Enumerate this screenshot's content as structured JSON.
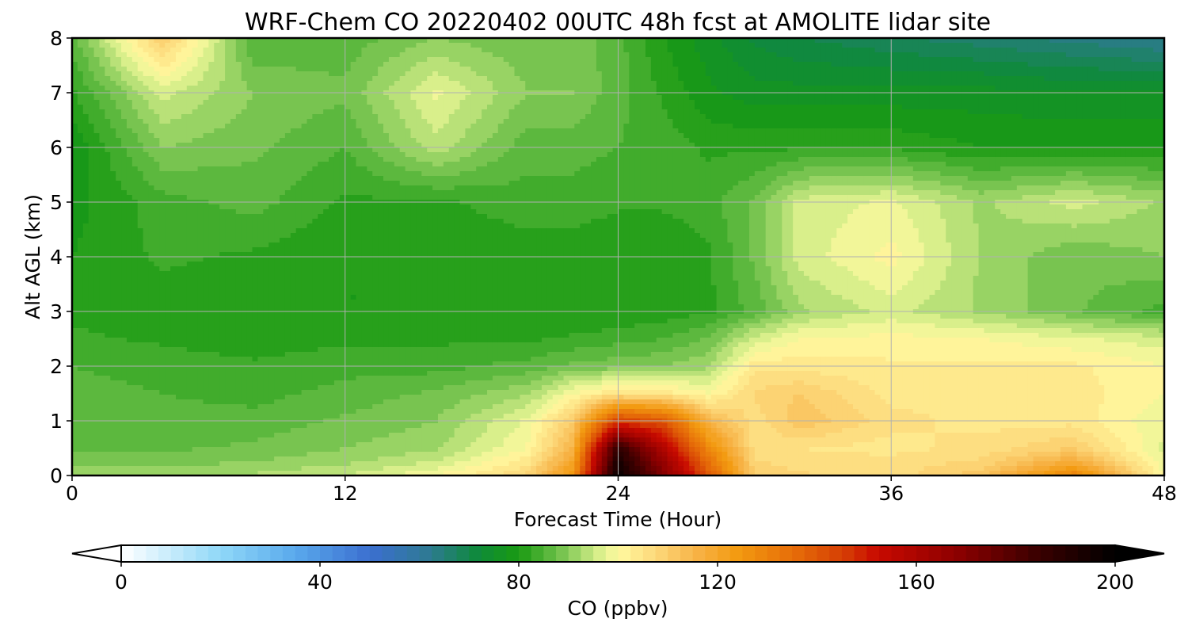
{
  "chart_data": {
    "type": "heatmap",
    "title": "WRF-Chem CO  20220402 00UTC 48h fcst at AMOLITE lidar site",
    "xlabel": "Forecast Time (Hour)",
    "ylabel": "Alt AGL (km)",
    "xlim": [
      0,
      48
    ],
    "ylim": [
      0,
      8
    ],
    "x_ticks": [
      "0",
      "12",
      "24",
      "36",
      "48"
    ],
    "y_ticks": [
      "0",
      "1",
      "2",
      "3",
      "4",
      "5",
      "6",
      "7",
      "8"
    ],
    "grid": true,
    "x_hours": [
      0,
      4,
      8,
      12,
      16,
      20,
      22,
      24,
      26,
      28,
      30,
      32,
      36,
      40,
      44,
      48
    ],
    "z_km": [
      0,
      0.25,
      0.5,
      1,
      1.5,
      2,
      2.5,
      3,
      4,
      5,
      6,
      7,
      8
    ],
    "co_ppbv": [
      [
        92,
        92,
        93,
        95,
        100,
        108,
        125,
        198,
        170,
        140,
        110,
        108,
        106,
        112,
        130,
        100
      ],
      [
        89,
        89,
        90,
        92,
        95,
        104,
        120,
        194,
        165,
        134,
        108,
        106,
        106,
        108,
        118,
        98
      ],
      [
        87,
        87,
        88,
        90,
        92,
        100,
        116,
        188,
        158,
        128,
        106,
        105,
        104,
        106,
        110,
        97
      ],
      [
        87,
        86,
        86,
        88,
        90,
        98,
        110,
        145,
        140,
        115,
        106,
        112,
        106,
        104,
        104,
        98
      ],
      [
        86,
        85,
        84,
        86,
        88,
        92,
        100,
        105,
        104,
        100,
        108,
        110,
        104,
        104,
        104,
        100
      ],
      [
        85,
        84,
        83,
        84,
        84,
        86,
        88,
        89,
        90,
        92,
        104,
        104,
        103,
        103,
        103,
        100
      ],
      [
        83,
        82,
        81,
        82,
        82,
        82,
        83,
        84,
        85,
        88,
        96,
        100,
        101,
        100,
        98,
        96
      ],
      [
        82,
        81,
        80,
        80,
        80,
        80,
        80,
        80,
        81,
        82,
        86,
        92,
        96,
        92,
        88,
        84
      ],
      [
        80,
        83,
        82,
        80,
        80,
        81,
        81,
        80,
        80,
        82,
        88,
        96,
        101,
        92,
        88,
        90
      ],
      [
        79,
        84,
        86,
        82,
        82,
        84,
        84,
        83,
        83,
        84,
        88,
        96,
        98,
        92,
        96,
        92
      ],
      [
        78,
        90,
        88,
        85,
        94,
        86,
        86,
        85,
        84,
        82,
        82,
        82,
        82,
        80,
        80,
        80
      ],
      [
        82,
        96,
        90,
        88,
        98,
        90,
        90,
        86,
        82,
        78,
        76,
        76,
        76,
        76,
        75,
        75
      ],
      [
        86,
        110,
        85,
        86,
        90,
        88,
        89,
        86,
        80,
        76,
        72,
        70,
        68,
        66,
        64,
        62
      ]
    ]
  },
  "colorbar": {
    "label": "CO  (ppbv)",
    "min": 0,
    "max": 200,
    "step": 2.5,
    "ticks": [
      "0",
      "40",
      "80",
      "120",
      "160",
      "200"
    ],
    "extend": "both",
    "colors": [
      [
        0,
        "#ffffff"
      ],
      [
        20,
        "#8fd8f8"
      ],
      [
        35,
        "#5aa9ec"
      ],
      [
        50,
        "#3b6fd0"
      ],
      [
        62,
        "#2e7a92"
      ],
      [
        72,
        "#0e8a38"
      ],
      [
        80,
        "#1a9a12"
      ],
      [
        88,
        "#6ec04a"
      ],
      [
        96,
        "#d6ee8a"
      ],
      [
        100,
        "#fffaa0"
      ],
      [
        108,
        "#fcd678"
      ],
      [
        116,
        "#f7b245"
      ],
      [
        124,
        "#f39a10"
      ],
      [
        136,
        "#e56a08"
      ],
      [
        146,
        "#d43a04"
      ],
      [
        152,
        "#c80a00"
      ],
      [
        168,
        "#8e0000"
      ],
      [
        184,
        "#3c0000"
      ],
      [
        200,
        "#000000"
      ]
    ]
  }
}
